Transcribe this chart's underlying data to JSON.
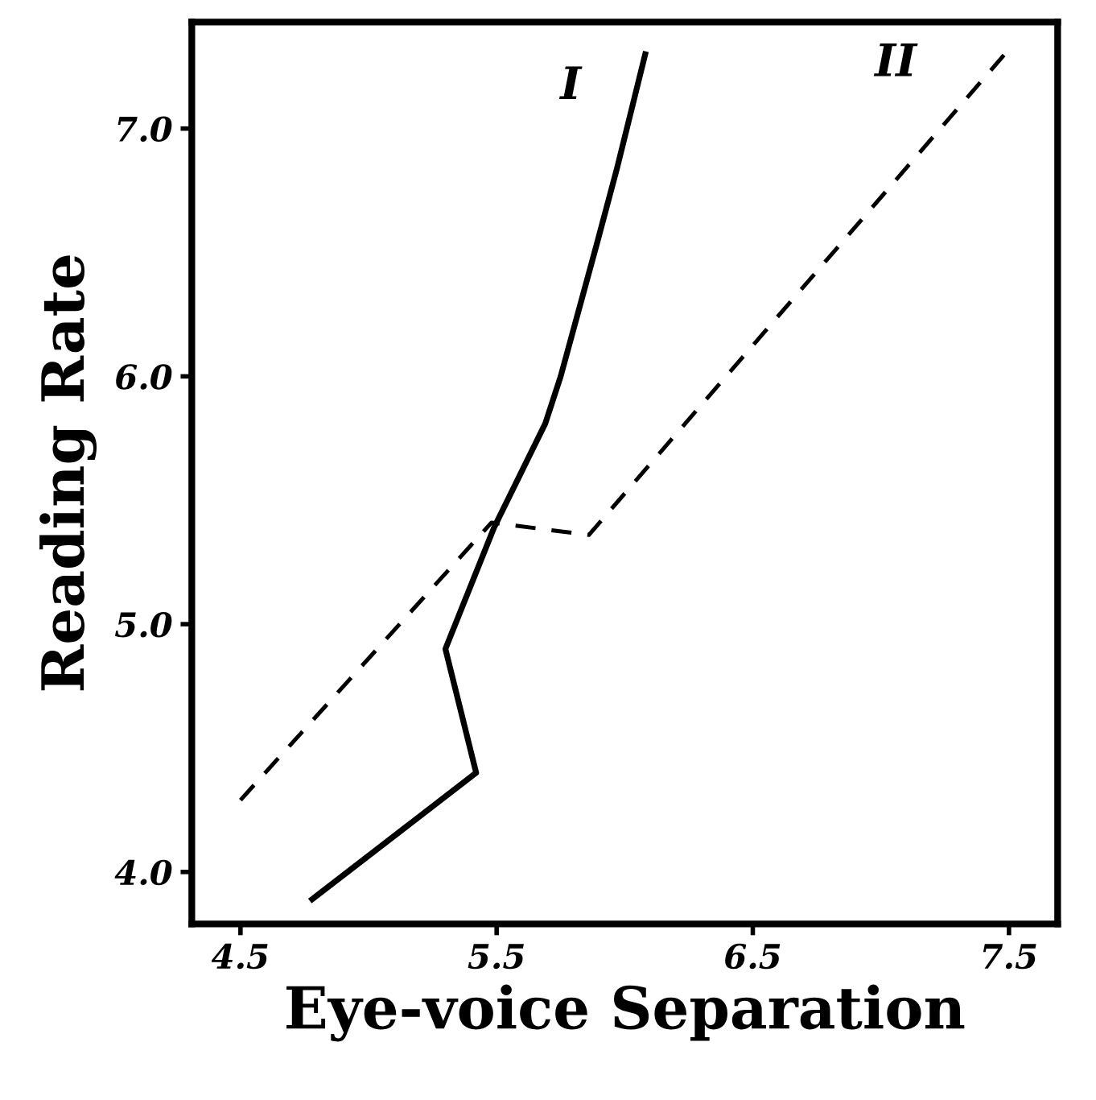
{
  "chart_data": {
    "type": "line",
    "xlabel": "Eye-voice Separation",
    "ylabel": "Reading Rate",
    "xlim": [
      4.31,
      7.69
    ],
    "ylim": [
      3.79,
      7.43
    ],
    "xticks": [
      4.5,
      5.5,
      6.5,
      7.5
    ],
    "yticks": [
      {
        "value": 4,
        "label": "4.0"
      },
      {
        "value": 5,
        "label": "5.0"
      },
      {
        "value": 6,
        "label": "6.0"
      },
      {
        "value": 7,
        "label": "7.0"
      }
    ],
    "grid": false,
    "legend": false,
    "marker": "none",
    "series": [
      {
        "name": "I",
        "color": "#000000",
        "line_style": "solid",
        "x": [
          4.78,
          5.42,
          5.3,
          5.49,
          5.69,
          5.75,
          5.89,
          5.97,
          6.08
        ],
        "values": [
          3.89,
          4.4,
          4.9,
          5.39,
          5.81,
          6.0,
          6.53,
          6.84,
          7.3
        ]
      },
      {
        "name": "II",
        "color": "#000000",
        "line_style": "dashed",
        "x": [
          4.5,
          5.48,
          5.86,
          7.5
        ],
        "values": [
          4.29,
          5.41,
          5.36,
          7.32
        ]
      }
    ]
  }
}
